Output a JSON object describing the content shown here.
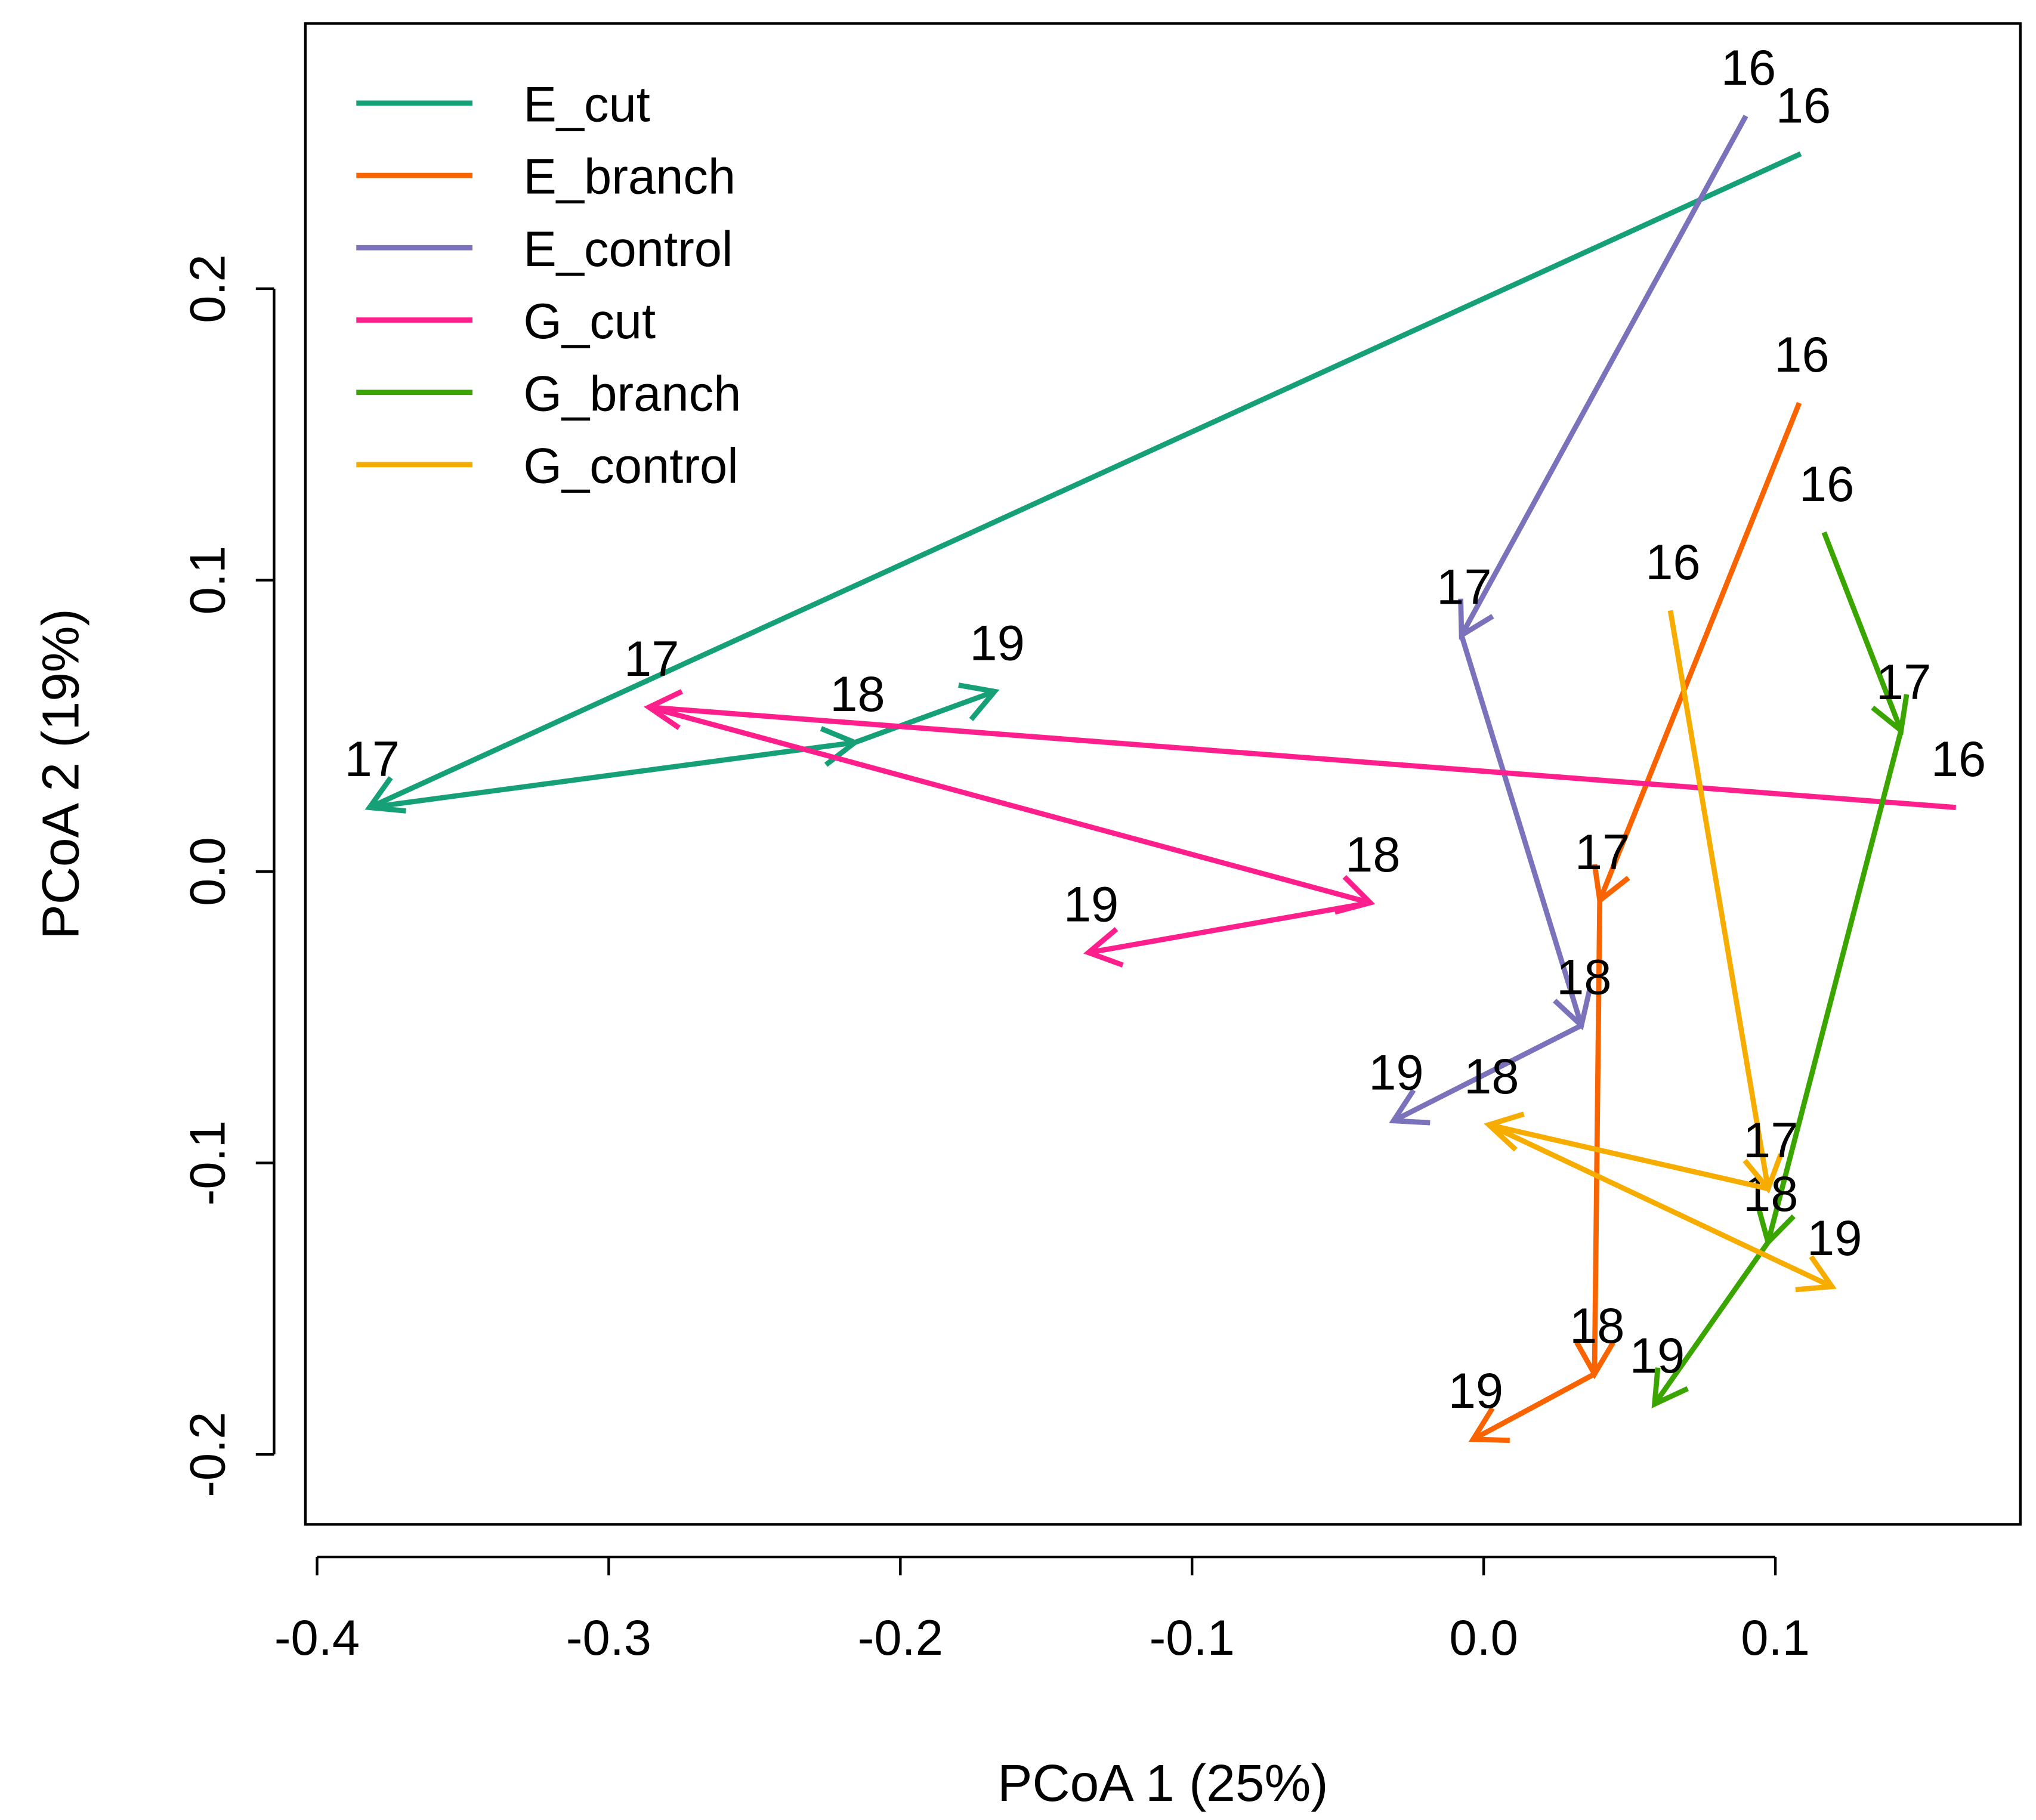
{
  "chart_data": {
    "type": "line",
    "title": "",
    "xlabel": "PCoA 1 (25%)",
    "ylabel": "PCoA 2 (19%)",
    "xlim": [
      -0.404,
      0.184
    ],
    "ylim": [
      -0.224,
      0.291
    ],
    "xticks": [
      -0.4,
      -0.3,
      -0.2,
      -0.1,
      0.0,
      0.1
    ],
    "xtick_labels": [
      "-0.4",
      "-0.3",
      "-0.2",
      "-0.1",
      "0.0",
      "0.1"
    ],
    "yticks": [
      -0.2,
      -0.1,
      0.0,
      0.1,
      0.2
    ],
    "ytick_labels": [
      "-0.2",
      "-0.1",
      "0.0",
      "0.1",
      "0.2"
    ],
    "grid": false,
    "legend_position": "top-left",
    "point_labels": [
      "16",
      "17",
      "18",
      "19"
    ],
    "series": [
      {
        "name": "E_cut",
        "color": "#16a078",
        "x": [
          0.1087,
          -0.382,
          -0.2156,
          -0.1677
        ],
        "y": [
          0.2463,
          0.022,
          0.0443,
          0.0618
        ]
      },
      {
        "name": "E_branch",
        "color": "#fa6400",
        "x": [
          0.1082,
          0.0398,
          0.038,
          -0.0036
        ],
        "y": [
          0.1608,
          -0.0099,
          -0.1724,
          -0.1948
        ]
      },
      {
        "name": "E_control",
        "color": "#7a72bb",
        "x": [
          0.0899,
          -0.0076,
          0.0335,
          -0.0309
        ],
        "y": [
          0.2593,
          0.0811,
          -0.0528,
          -0.0855
        ]
      },
      {
        "name": "G_cut",
        "color": "#ff1f8c",
        "x": [
          0.1619,
          -0.2862,
          -0.0389,
          -0.1355
        ],
        "y": [
          0.022,
          0.0564,
          -0.0107,
          -0.0278
        ]
      },
      {
        "name": "G_branch",
        "color": "#3ba500",
        "x": [
          0.1167,
          0.1431,
          0.0975,
          0.0586
        ],
        "y": [
          0.1164,
          0.0484,
          -0.1272,
          -0.1827
        ]
      },
      {
        "name": "G_control",
        "color": "#f7ad00",
        "x": [
          0.064,
          0.0975,
          0.0018,
          0.1194
        ],
        "y": [
          0.0896,
          -0.1088,
          -0.0869,
          -0.1424
        ]
      }
    ]
  }
}
